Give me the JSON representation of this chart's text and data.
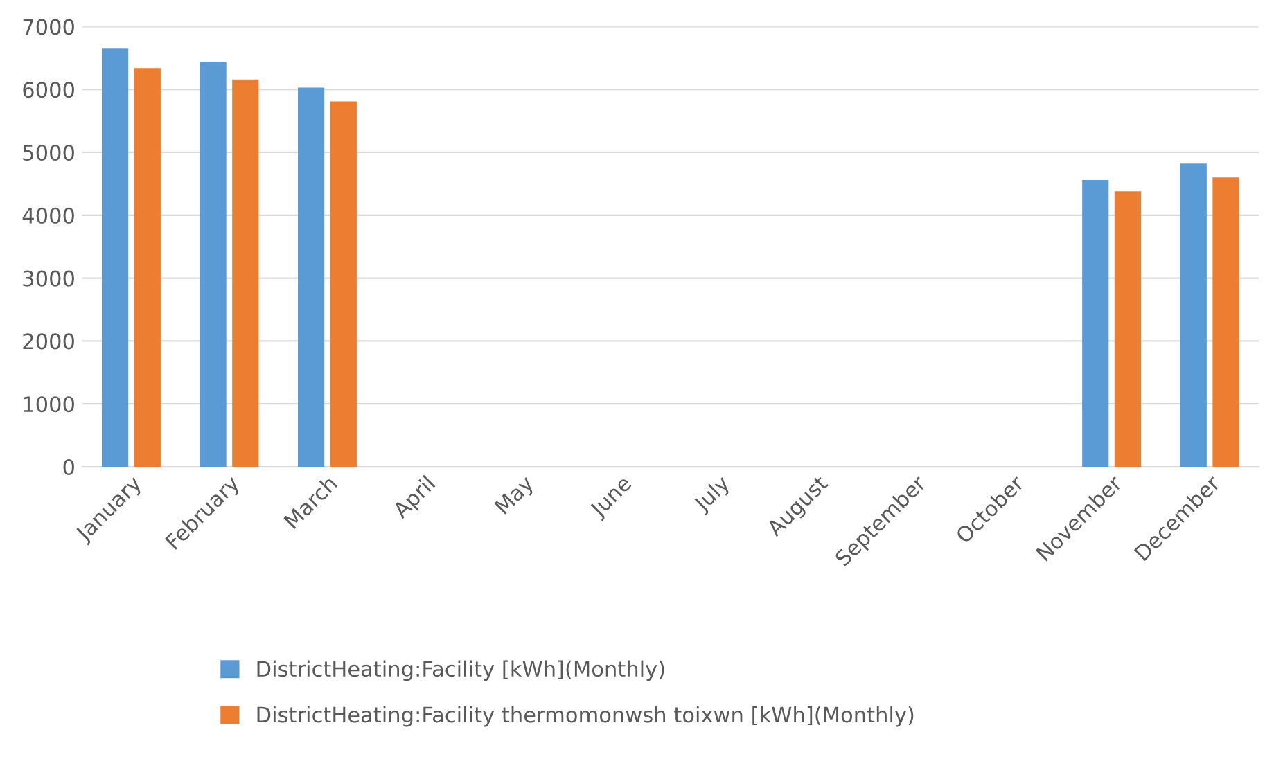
{
  "chart_data": {
    "type": "bar",
    "categories": [
      "January",
      "February",
      "March",
      "April",
      "May",
      "June",
      "July",
      "August",
      "September",
      "October",
      "November",
      "December"
    ],
    "series": [
      {
        "name": "DistrictHeating:Facility [kWh](Monthly)",
        "color": "#5b9bd5",
        "values": [
          6650,
          6430,
          6030,
          0,
          0,
          0,
          0,
          0,
          0,
          0,
          4560,
          4820
        ]
      },
      {
        "name": "DistrictHeating:Facility thermomonwsh toixwn [kWh](Monthly)",
        "color": "#ed7d31",
        "values": [
          6340,
          6160,
          5810,
          0,
          0,
          0,
          0,
          0,
          0,
          0,
          4380,
          4600
        ]
      }
    ],
    "ylim": [
      0,
      7000
    ],
    "yticks": [
      0,
      1000,
      2000,
      3000,
      4000,
      5000,
      6000,
      7000
    ],
    "grid": "y",
    "legend": "bottom"
  }
}
